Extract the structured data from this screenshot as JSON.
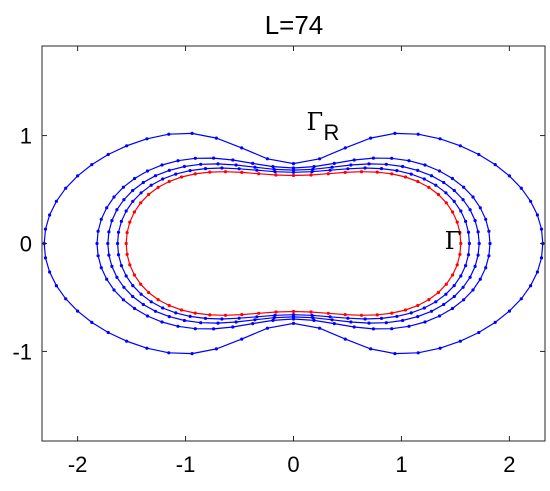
{
  "chart_data": {
    "type": "line",
    "title": "L=74",
    "xlabel": "",
    "ylabel": "",
    "xlim": [
      -2.33,
      2.33
    ],
    "ylim": [
      -1.83,
      1.83
    ],
    "xticks": [
      -2,
      -1,
      0,
      1,
      2
    ],
    "xtick_labels": [
      "-2",
      "-1",
      "0",
      "1",
      "2"
    ],
    "yticks": [
      -1,
      0,
      1
    ],
    "ytick_labels": [
      "-1",
      "0",
      "1"
    ],
    "grid": false,
    "legend": "none",
    "annotations": [
      {
        "text": "Γ",
        "sub": "R",
        "x": 0.12,
        "y": 1.05
      },
      {
        "text": "Γ",
        "sub": "",
        "x": 1.4,
        "y": -0.05
      }
    ],
    "curve_family": {
      "description_shape": "peanut (bi-lobed) closed curves, 60 points each",
      "points_per_curve": 60
    },
    "series": [
      {
        "color": "#0000ff",
        "half_width": 2.31,
        "lobe_height": 1.14,
        "waist": 0.74,
        "lobe_x": 1.25,
        "sharp": 0.9
      },
      {
        "color": "#0000ff",
        "half_width": 1.82,
        "lobe_height": 0.86,
        "waist": 0.7,
        "lobe_x": 1.2,
        "sharp": 1.6
      },
      {
        "color": "#0000ff",
        "half_width": 1.72,
        "lobe_height": 0.79,
        "waist": 0.68,
        "lobe_x": 1.18,
        "sharp": 1.8
      },
      {
        "color": "#0000ff",
        "half_width": 1.63,
        "lobe_height": 0.74,
        "waist": 0.66,
        "lobe_x": 1.15,
        "sharp": 2.0
      },
      {
        "color": "#ff0000",
        "half_width": 1.55,
        "lobe_height": 0.7,
        "waist": 0.63,
        "lobe_x": 1.1,
        "sharp": 2.2
      }
    ]
  }
}
